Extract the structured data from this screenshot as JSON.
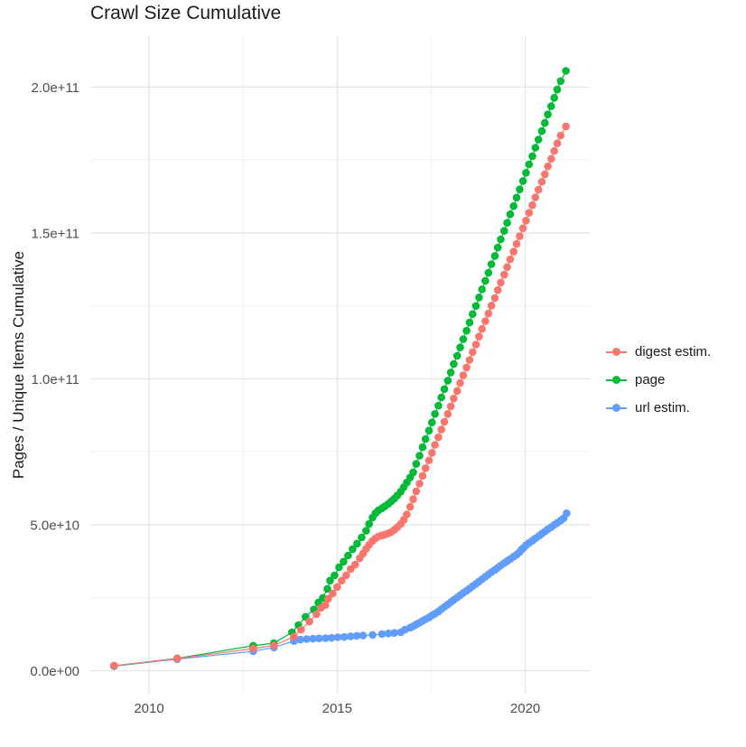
{
  "header": {
    "title": "Crawl Size Cumulative"
  },
  "axes": {
    "y_label": "Pages / Unique Items Cumulative",
    "y_ticks": [
      "0.0e+00",
      "5.0e+10",
      "1.0e+11",
      "1.5e+11",
      "2.0e+11"
    ],
    "x_ticks": [
      "2010",
      "2015",
      "2020"
    ]
  },
  "legend": {
    "items": [
      {
        "label": "digest estim.",
        "color": "#F8766D"
      },
      {
        "label": "page",
        "color": "#00BA38"
      },
      {
        "label": "url estim.",
        "color": "#619CFF"
      }
    ]
  },
  "colors": {
    "grid_major": "#e3e3e3",
    "grid_minor": "#f1f1f1",
    "tick_label": "#4d4d4d",
    "text": "#1a1a1a",
    "background": "#ffffff"
  },
  "chart_data": {
    "type": "scatter",
    "title": "Crawl Size Cumulative",
    "xlabel": "",
    "ylabel": "Pages / Unique Items Cumulative",
    "x_unit": "year (decimal)",
    "xlim": [
      2008.45,
      2021.75
    ],
    "ylim": [
      -7500000000.0,
      217000000000.0
    ],
    "grid": true,
    "legend_position": "right",
    "marker": "circle",
    "line_and_points": true,
    "x_major_ticks": [
      2010,
      2015,
      2020
    ],
    "x_minor_ticks": [
      2012.5,
      2017.5
    ],
    "y_major_ticks": [
      0,
      50000000000.0,
      100000000000.0,
      150000000000.0,
      200000000000.0
    ],
    "y_minor_ticks": [
      25000000000.0,
      75000000000.0,
      125000000000.0,
      175000000000.0
    ],
    "series": [
      {
        "name": "digest estim.",
        "color": "#F8766D",
        "points": [
          [
            2009.07,
            1800000000.0
          ],
          [
            2010.75,
            4200000000.0
          ],
          [
            2012.77,
            7600000000.0
          ],
          [
            2013.32,
            8700000000.0
          ],
          [
            2013.85,
            11700000000.0
          ],
          [
            2014.04,
            14100000000.0
          ],
          [
            2014.26,
            16900000000.0
          ],
          [
            2014.45,
            19400000000.0
          ],
          [
            2014.57,
            21600000000.0
          ],
          [
            2014.69,
            22500000000.0
          ],
          [
            2014.76,
            24700000000.0
          ],
          [
            2014.88,
            26500000000.0
          ],
          [
            2015.0,
            28700000000.0
          ],
          [
            2015.12,
            30900000000.0
          ],
          [
            2015.24,
            32700000000.0
          ],
          [
            2015.36,
            34900000000.0
          ],
          [
            2015.48,
            36400000000.0
          ],
          [
            2015.6,
            38600000000.0
          ],
          [
            2015.69,
            40200000000.0
          ],
          [
            2015.77,
            41800000000.0
          ],
          [
            2015.85,
            43200000000.0
          ],
          [
            2015.94,
            44500000000.0
          ],
          [
            2016.02,
            45400000000.0
          ],
          [
            2016.1,
            46000000000.0
          ],
          [
            2016.19,
            46400000000.0
          ],
          [
            2016.27,
            46700000000.0
          ],
          [
            2016.36,
            47100000000.0
          ],
          [
            2016.44,
            47600000000.0
          ],
          [
            2016.52,
            48300000000.0
          ],
          [
            2016.6,
            49200000000.0
          ],
          [
            2016.69,
            50300000000.0
          ],
          [
            2016.77,
            51700000000.0
          ],
          [
            2016.85,
            53600000000.0
          ],
          [
            2016.94,
            56200000000.0
          ],
          [
            2017.02,
            58800000000.0
          ],
          [
            2017.1,
            61500000000.0
          ],
          [
            2017.19,
            64100000000.0
          ],
          [
            2017.27,
            66800000000.0
          ],
          [
            2017.35,
            69400000000.0
          ],
          [
            2017.44,
            72100000000.0
          ],
          [
            2017.52,
            74700000000.0
          ],
          [
            2017.6,
            77400000000.0
          ],
          [
            2017.69,
            80000000000.0
          ],
          [
            2017.77,
            82700000000.0
          ],
          [
            2017.85,
            85300000000.0
          ],
          [
            2017.94,
            88000000000.0
          ],
          [
            2018.02,
            90600000000.0
          ],
          [
            2018.1,
            93300000000.0
          ],
          [
            2018.19,
            95900000000.0
          ],
          [
            2018.27,
            98600000000.0
          ],
          [
            2018.35,
            101200000000.0
          ],
          [
            2018.44,
            103900000000.0
          ],
          [
            2018.52,
            106500000000.0
          ],
          [
            2018.6,
            109200000000.0
          ],
          [
            2018.69,
            111800000000.0
          ],
          [
            2018.77,
            114500000000.0
          ],
          [
            2018.85,
            117100000000.0
          ],
          [
            2018.94,
            119800000000.0
          ],
          [
            2019.02,
            122400000000.0
          ],
          [
            2019.1,
            125100000000.0
          ],
          [
            2019.19,
            127700000000.0
          ],
          [
            2019.27,
            130400000000.0
          ],
          [
            2019.35,
            133000000000.0
          ],
          [
            2019.44,
            135700000000.0
          ],
          [
            2019.52,
            138300000000.0
          ],
          [
            2019.6,
            141000000000.0
          ],
          [
            2019.69,
            143600000000.0
          ],
          [
            2019.77,
            146300000000.0
          ],
          [
            2019.85,
            148900000000.0
          ],
          [
            2019.94,
            151600000000.0
          ],
          [
            2020.02,
            154200000000.0
          ],
          [
            2020.1,
            156900000000.0
          ],
          [
            2020.19,
            159500000000.0
          ],
          [
            2020.27,
            162200000000.0
          ],
          [
            2020.35,
            164800000000.0
          ],
          [
            2020.44,
            167500000000.0
          ],
          [
            2020.52,
            170100000000.0
          ],
          [
            2020.6,
            172800000000.0
          ],
          [
            2020.69,
            175400000000.0
          ],
          [
            2020.77,
            178100000000.0
          ],
          [
            2020.85,
            180700000000.0
          ],
          [
            2020.94,
            183400000000.0
          ],
          [
            2021.08,
            186500000000.0
          ]
        ]
      },
      {
        "name": "page",
        "color": "#00BA38",
        "points": [
          [
            2009.07,
            1700000000.0
          ],
          [
            2010.75,
            4300000000.0
          ],
          [
            2012.77,
            8600000000.0
          ],
          [
            2013.32,
            9500000000.0
          ],
          [
            2013.8,
            13200000000.0
          ],
          [
            2013.97,
            15700000000.0
          ],
          [
            2014.16,
            18500000000.0
          ],
          [
            2014.38,
            21000000000.0
          ],
          [
            2014.5,
            23400000000.0
          ],
          [
            2014.62,
            25000000000.0
          ],
          [
            2014.74,
            28100000000.0
          ],
          [
            2014.81,
            30900000000.0
          ],
          [
            2014.93,
            32700000000.0
          ],
          [
            2015.05,
            35500000000.0
          ],
          [
            2015.17,
            37400000000.0
          ],
          [
            2015.29,
            39500000000.0
          ],
          [
            2015.41,
            41700000000.0
          ],
          [
            2015.53,
            43600000000.0
          ],
          [
            2015.65,
            45700000000.0
          ],
          [
            2015.77,
            48000000000.0
          ],
          [
            2015.85,
            50300000000.0
          ],
          [
            2015.94,
            52500000000.0
          ],
          [
            2016.02,
            54000000000.0
          ],
          [
            2016.1,
            55000000000.0
          ],
          [
            2016.19,
            55700000000.0
          ],
          [
            2016.27,
            56400000000.0
          ],
          [
            2016.36,
            57200000000.0
          ],
          [
            2016.44,
            58100000000.0
          ],
          [
            2016.52,
            59000000000.0
          ],
          [
            2016.6,
            60100000000.0
          ],
          [
            2016.69,
            61400000000.0
          ],
          [
            2016.77,
            62900000000.0
          ],
          [
            2016.85,
            64500000000.0
          ],
          [
            2016.94,
            66200000000.0
          ],
          [
            2017.02,
            68000000000.0
          ],
          [
            2017.1,
            70900000000.0
          ],
          [
            2017.19,
            73700000000.0
          ],
          [
            2017.27,
            76600000000.0
          ],
          [
            2017.35,
            79400000000.0
          ],
          [
            2017.44,
            82300000000.0
          ],
          [
            2017.52,
            85100000000.0
          ],
          [
            2017.6,
            88000000000.0
          ],
          [
            2017.69,
            90800000000.0
          ],
          [
            2017.77,
            93700000000.0
          ],
          [
            2017.85,
            96500000000.0
          ],
          [
            2017.94,
            99400000000.0
          ],
          [
            2018.02,
            102200000000.0
          ],
          [
            2018.1,
            105100000000.0
          ],
          [
            2018.19,
            107900000000.0
          ],
          [
            2018.27,
            110800000000.0
          ],
          [
            2018.35,
            113600000000.0
          ],
          [
            2018.44,
            116500000000.0
          ],
          [
            2018.52,
            119300000000.0
          ],
          [
            2018.6,
            122200000000.0
          ],
          [
            2018.69,
            125000000000.0
          ],
          [
            2018.77,
            127900000000.0
          ],
          [
            2018.85,
            130700000000.0
          ],
          [
            2018.94,
            133600000000.0
          ],
          [
            2019.02,
            136400000000.0
          ],
          [
            2019.1,
            139300000000.0
          ],
          [
            2019.19,
            142100000000.0
          ],
          [
            2019.27,
            145000000000.0
          ],
          [
            2019.35,
            147800000000.0
          ],
          [
            2019.44,
            150700000000.0
          ],
          [
            2019.52,
            153500000000.0
          ],
          [
            2019.6,
            156400000000.0
          ],
          [
            2019.69,
            159200000000.0
          ],
          [
            2019.77,
            162100000000.0
          ],
          [
            2019.85,
            164900000000.0
          ],
          [
            2019.94,
            167800000000.0
          ],
          [
            2020.02,
            170600000000.0
          ],
          [
            2020.1,
            173500000000.0
          ],
          [
            2020.19,
            176300000000.0
          ],
          [
            2020.27,
            179200000000.0
          ],
          [
            2020.35,
            182000000000.0
          ],
          [
            2020.44,
            184900000000.0
          ],
          [
            2020.52,
            187700000000.0
          ],
          [
            2020.6,
            190600000000.0
          ],
          [
            2020.69,
            193400000000.0
          ],
          [
            2020.77,
            196300000000.0
          ],
          [
            2020.85,
            199100000000.0
          ],
          [
            2020.94,
            202000000000.0
          ],
          [
            2021.08,
            205500000000.0
          ]
        ]
      },
      {
        "name": "url estim.",
        "color": "#619CFF",
        "points": [
          [
            2009.07,
            1600000000.0
          ],
          [
            2010.75,
            4000000000.0
          ],
          [
            2012.77,
            6700000000.0
          ],
          [
            2013.32,
            8000000000.0
          ],
          [
            2013.85,
            10200000000.0
          ],
          [
            2014.02,
            10700000000.0
          ],
          [
            2014.19,
            10900000000.0
          ],
          [
            2014.36,
            11000000000.0
          ],
          [
            2014.52,
            11100000000.0
          ],
          [
            2014.69,
            11200000000.0
          ],
          [
            2014.85,
            11300000000.0
          ],
          [
            2015.02,
            11500000000.0
          ],
          [
            2015.19,
            11600000000.0
          ],
          [
            2015.36,
            11800000000.0
          ],
          [
            2015.52,
            12000000000.0
          ],
          [
            2015.69,
            12100000000.0
          ],
          [
            2015.94,
            12300000000.0
          ],
          [
            2016.19,
            12600000000.0
          ],
          [
            2016.36,
            12800000000.0
          ],
          [
            2016.52,
            13000000000.0
          ],
          [
            2016.69,
            13200000000.0
          ],
          [
            2016.8,
            14100000000.0
          ],
          [
            2016.94,
            14800000000.0
          ],
          [
            2017.02,
            15300000000.0
          ],
          [
            2017.1,
            15900000000.0
          ],
          [
            2017.19,
            16500000000.0
          ],
          [
            2017.27,
            17100000000.0
          ],
          [
            2017.35,
            17700000000.0
          ],
          [
            2017.44,
            18300000000.0
          ],
          [
            2017.52,
            19000000000.0
          ],
          [
            2017.6,
            19600000000.0
          ],
          [
            2017.69,
            20300000000.0
          ],
          [
            2017.77,
            21100000000.0
          ],
          [
            2017.85,
            21900000000.0
          ],
          [
            2017.94,
            22700000000.0
          ],
          [
            2018.02,
            23500000000.0
          ],
          [
            2018.1,
            24300000000.0
          ],
          [
            2018.19,
            25100000000.0
          ],
          [
            2018.27,
            25900000000.0
          ],
          [
            2018.35,
            26700000000.0
          ],
          [
            2018.44,
            27400000000.0
          ],
          [
            2018.52,
            28200000000.0
          ],
          [
            2018.6,
            29000000000.0
          ],
          [
            2018.69,
            29800000000.0
          ],
          [
            2018.77,
            30600000000.0
          ],
          [
            2018.85,
            31400000000.0
          ],
          [
            2018.94,
            32200000000.0
          ],
          [
            2019.02,
            33000000000.0
          ],
          [
            2019.1,
            33800000000.0
          ],
          [
            2019.19,
            34600000000.0
          ],
          [
            2019.27,
            35300000000.0
          ],
          [
            2019.35,
            36100000000.0
          ],
          [
            2019.44,
            36900000000.0
          ],
          [
            2019.52,
            37600000000.0
          ],
          [
            2019.6,
            38300000000.0
          ],
          [
            2019.69,
            39100000000.0
          ],
          [
            2019.77,
            39800000000.0
          ],
          [
            2019.85,
            40700000000.0
          ],
          [
            2019.9,
            41500000000.0
          ],
          [
            2019.96,
            42200000000.0
          ],
          [
            2020.02,
            43000000000.0
          ],
          [
            2020.1,
            43800000000.0
          ],
          [
            2020.19,
            44600000000.0
          ],
          [
            2020.27,
            45400000000.0
          ],
          [
            2020.36,
            46200000000.0
          ],
          [
            2020.44,
            47000000000.0
          ],
          [
            2020.52,
            47700000000.0
          ],
          [
            2020.6,
            48500000000.0
          ],
          [
            2020.69,
            49200000000.0
          ],
          [
            2020.77,
            50000000000.0
          ],
          [
            2020.85,
            50700000000.0
          ],
          [
            2020.94,
            51500000000.0
          ],
          [
            2021.02,
            52300000000.0
          ],
          [
            2021.1,
            54000000000.0
          ]
        ]
      }
    ]
  }
}
